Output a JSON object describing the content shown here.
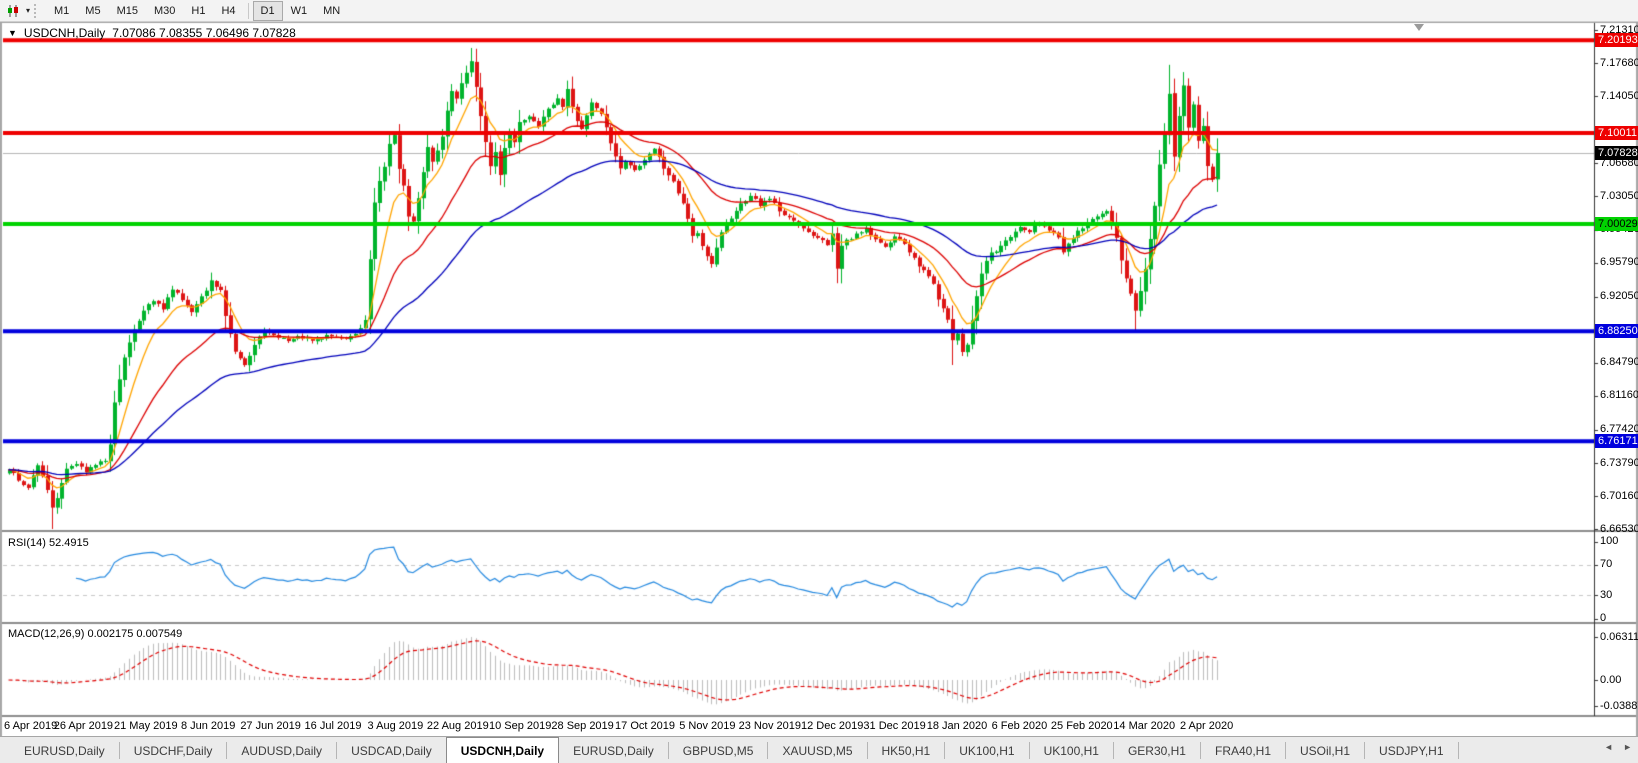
{
  "toolbar": {
    "tool_icon": "candlestick-chart-icon",
    "timeframes": [
      "M1",
      "M5",
      "M15",
      "M30",
      "H1",
      "H4",
      "D1",
      "W1",
      "MN"
    ],
    "active_timeframe": "D1"
  },
  "window": {
    "symbol_title": "USDCNH,Daily",
    "ohlc": "7.07086 7.08355 7.06496 7.07828"
  },
  "price_axis": {
    "ticks": [
      "7.21310",
      "7.17680",
      "7.14050",
      "7.06680",
      "7.03050",
      "6.99420",
      "6.95790",
      "6.92050",
      "6.84790",
      "6.81160",
      "6.77420",
      "6.73790",
      "6.70160",
      "6.66530"
    ],
    "badges": [
      {
        "value": "7.20193",
        "bg": "#ee0000",
        "fg": "#ffffff"
      },
      {
        "value": "7.10011",
        "bg": "#ee0000",
        "fg": "#ffffff"
      },
      {
        "value": "7.07828",
        "bg": "#000000",
        "fg": "#ffffff"
      },
      {
        "value": "7.00029",
        "bg": "#00d300",
        "fg": "#000000"
      },
      {
        "value": "6.88250",
        "bg": "#0000dd",
        "fg": "#ffffff"
      },
      {
        "value": "6.76171",
        "bg": "#0000dd",
        "fg": "#ffffff"
      }
    ]
  },
  "time_axis": {
    "labels": [
      "6 Apr 2019",
      "26 Apr 2019",
      "21 May 2019",
      "8 Jun 2019",
      "27 Jun 2019",
      "16 Jul 2019",
      "3 Aug 2019",
      "22 Aug 2019",
      "10 Sep 2019",
      "28 Sep 2019",
      "17 Oct 2019",
      "5 Nov 2019",
      "23 Nov 2019",
      "12 Dec 2019",
      "31 Dec 2019",
      "18 Jan 2020",
      "6 Feb 2020",
      "25 Feb 2020",
      "14 Mar 2020",
      "2 Apr 2020"
    ]
  },
  "rsi": {
    "label": "RSI(14) 52.4915",
    "period": 14,
    "axis": [
      "100",
      "70",
      "30",
      "0"
    ],
    "dashed_levels": [
      70,
      30
    ],
    "line_color": "#2489e0"
  },
  "macd": {
    "label": "MACD(12,26,9) 0.002175 0.007549",
    "fast": 12,
    "slow": 26,
    "signal": 9,
    "axis": [
      "0.063113",
      "0.00",
      "-0.03887"
    ],
    "hist_color": "#bdbdbd",
    "signal_color": "#e00000"
  },
  "tabs": {
    "items": [
      "EURUSD,Daily",
      "USDCHF,Daily",
      "AUDUSD,Daily",
      "USDCAD,Daily",
      "USDCNH,Daily",
      "EURUSD,Daily",
      "GBPUSD,M5",
      "XAUUSD,M5",
      "HK50,H1",
      "UK100,H1",
      "UK100,H1",
      "GER30,H1",
      "FRA40,H1",
      "USOil,H1",
      "USDJPY,H1"
    ],
    "active_index": 4,
    "nav_icons": [
      "left-arrow",
      "right-arrow"
    ]
  },
  "chart_data": {
    "type": "candlestick",
    "symbol": "USDCNH",
    "timeframe": "Daily",
    "bars": 252,
    "last_close": 7.07828,
    "ylim": [
      6.6653,
      7.2131
    ],
    "levels": [
      {
        "price": 7.20193,
        "color": "#ee0000",
        "thickness": 4
      },
      {
        "price": 7.10011,
        "color": "#ee0000",
        "thickness": 4
      },
      {
        "price": 7.00029,
        "color": "#00d300",
        "thickness": 4
      },
      {
        "price": 6.8825,
        "color": "#0000dd",
        "thickness": 4
      },
      {
        "price": 6.76171,
        "color": "#0000dd",
        "thickness": 4
      }
    ],
    "current_price": {
      "value": 7.07828,
      "line_color": "#b5b5b5"
    },
    "moving_averages": [
      {
        "period": 8,
        "color": "#ffa500"
      },
      {
        "period": 25,
        "color": "#dd0000"
      },
      {
        "period": 55,
        "color": "#0000bb"
      }
    ],
    "candle_up": "#00b42c",
    "candle_down": "#dd1414",
    "close_keypoints": [
      [
        0,
        6.732
      ],
      [
        2,
        6.718
      ],
      [
        4,
        6.712
      ],
      [
        6,
        6.736
      ],
      [
        8,
        6.71
      ],
      [
        9,
        6.688
      ],
      [
        10,
        6.7
      ],
      [
        12,
        6.732
      ],
      [
        14,
        6.738
      ],
      [
        16,
        6.728
      ],
      [
        18,
        6.736
      ],
      [
        20,
        6.742
      ],
      [
        21,
        6.76
      ],
      [
        22,
        6.805
      ],
      [
        24,
        6.855
      ],
      [
        26,
        6.885
      ],
      [
        28,
        6.905
      ],
      [
        30,
        6.916
      ],
      [
        32,
        6.908
      ],
      [
        34,
        6.93
      ],
      [
        36,
        6.918
      ],
      [
        38,
        6.903
      ],
      [
        40,
        6.92
      ],
      [
        42,
        6.938
      ],
      [
        44,
        6.928
      ],
      [
        45,
        6.9
      ],
      [
        47,
        6.862
      ],
      [
        49,
        6.845
      ],
      [
        51,
        6.868
      ],
      [
        53,
        6.882
      ],
      [
        55,
        6.878
      ],
      [
        58,
        6.872
      ],
      [
        60,
        6.878
      ],
      [
        63,
        6.873
      ],
      [
        66,
        6.878
      ],
      [
        69,
        6.874
      ],
      [
        72,
        6.88
      ],
      [
        74,
        6.895
      ],
      [
        75,
        6.96
      ],
      [
        76,
        7.025
      ],
      [
        77,
        7.048
      ],
      [
        78,
        7.062
      ],
      [
        79,
        7.088
      ],
      [
        80,
        7.098
      ],
      [
        81,
        7.062
      ],
      [
        82,
        7.042
      ],
      [
        83,
        7.01
      ],
      [
        84,
        7.005
      ],
      [
        85,
        7.028
      ],
      [
        86,
        7.058
      ],
      [
        87,
        7.085
      ],
      [
        88,
        7.07
      ],
      [
        90,
        7.095
      ],
      [
        91,
        7.125
      ],
      [
        92,
        7.145
      ],
      [
        93,
        7.138
      ],
      [
        94,
        7.155
      ],
      [
        95,
        7.168
      ],
      [
        96,
        7.178
      ],
      [
        97,
        7.152
      ],
      [
        98,
        7.118
      ],
      [
        99,
        7.09
      ],
      [
        100,
        7.065
      ],
      [
        101,
        7.078
      ],
      [
        102,
        7.055
      ],
      [
        103,
        7.085
      ],
      [
        104,
        7.1
      ],
      [
        105,
        7.092
      ],
      [
        106,
        7.112
      ],
      [
        108,
        7.118
      ],
      [
        110,
        7.108
      ],
      [
        112,
        7.125
      ],
      [
        114,
        7.14
      ],
      [
        115,
        7.128
      ],
      [
        116,
        7.148
      ],
      [
        117,
        7.13
      ],
      [
        118,
        7.112
      ],
      [
        119,
        7.105
      ],
      [
        120,
        7.118
      ],
      [
        121,
        7.135
      ],
      [
        122,
        7.128
      ],
      [
        123,
        7.12
      ],
      [
        124,
        7.105
      ],
      [
        125,
        7.088
      ],
      [
        126,
        7.075
      ],
      [
        127,
        7.062
      ],
      [
        128,
        7.068
      ],
      [
        130,
        7.058
      ],
      [
        132,
        7.07
      ],
      [
        134,
        7.082
      ],
      [
        135,
        7.072
      ],
      [
        136,
        7.062
      ],
      [
        138,
        7.048
      ],
      [
        140,
        7.022
      ],
      [
        141,
        7.005
      ],
      [
        142,
        6.988
      ],
      [
        143,
        6.992
      ],
      [
        144,
        6.975
      ],
      [
        145,
        6.965
      ],
      [
        146,
        6.958
      ],
      [
        147,
        6.975
      ],
      [
        148,
        6.992
      ],
      [
        150,
        7.008
      ],
      [
        152,
        7.022
      ],
      [
        154,
        7.03
      ],
      [
        156,
        7.022
      ],
      [
        158,
        7.028
      ],
      [
        160,
        7.015
      ],
      [
        162,
        7.008
      ],
      [
        164,
        6.998
      ],
      [
        166,
        6.992
      ],
      [
        168,
        6.985
      ],
      [
        170,
        6.978
      ],
      [
        171,
        6.988
      ],
      [
        172,
        6.952
      ],
      [
        173,
        6.975
      ],
      [
        174,
        6.982
      ],
      [
        176,
        6.988
      ],
      [
        178,
        6.996
      ],
      [
        180,
        6.982
      ],
      [
        182,
        6.975
      ],
      [
        184,
        6.988
      ],
      [
        186,
        6.978
      ],
      [
        188,
        6.962
      ],
      [
        190,
        6.948
      ],
      [
        192,
        6.935
      ],
      [
        193,
        6.918
      ],
      [
        194,
        6.908
      ],
      [
        195,
        6.895
      ],
      [
        196,
        6.872
      ],
      [
        197,
        6.882
      ],
      [
        198,
        6.858
      ],
      [
        199,
        6.868
      ],
      [
        200,
        6.895
      ],
      [
        201,
        6.922
      ],
      [
        202,
        6.945
      ],
      [
        203,
        6.958
      ],
      [
        204,
        6.968
      ],
      [
        206,
        6.975
      ],
      [
        208,
        6.988
      ],
      [
        210,
        6.998
      ],
      [
        212,
        6.992
      ],
      [
        214,
        7.002
      ],
      [
        216,
        6.995
      ],
      [
        218,
        6.985
      ],
      [
        219,
        6.968
      ],
      [
        220,
        6.98
      ],
      [
        222,
        6.992
      ],
      [
        224,
        7.002
      ],
      [
        226,
        7.008
      ],
      [
        228,
        7.015
      ],
      [
        229,
        7.002
      ],
      [
        230,
        6.985
      ],
      [
        231,
        6.962
      ],
      [
        232,
        6.942
      ],
      [
        233,
        6.925
      ],
      [
        234,
        6.905
      ],
      [
        235,
        6.928
      ],
      [
        236,
        6.952
      ],
      [
        237,
        6.985
      ],
      [
        238,
        7.022
      ],
      [
        239,
        7.065
      ],
      [
        240,
        7.098
      ],
      [
        241,
        7.145
      ],
      [
        242,
        7.075
      ],
      [
        243,
        7.118
      ],
      [
        244,
        7.152
      ],
      [
        245,
        7.108
      ],
      [
        246,
        7.132
      ],
      [
        247,
        7.092
      ],
      [
        248,
        7.108
      ],
      [
        249,
        7.062
      ],
      [
        250,
        7.048
      ],
      [
        251,
        7.078
      ]
    ],
    "wick_overrides": {
      "9": {
        "low": 6.6655
      },
      "96": {
        "high": 7.1935
      },
      "196": {
        "low": 6.8455
      },
      "234": {
        "low": 6.882
      },
      "241": {
        "high": 7.175
      }
    }
  }
}
